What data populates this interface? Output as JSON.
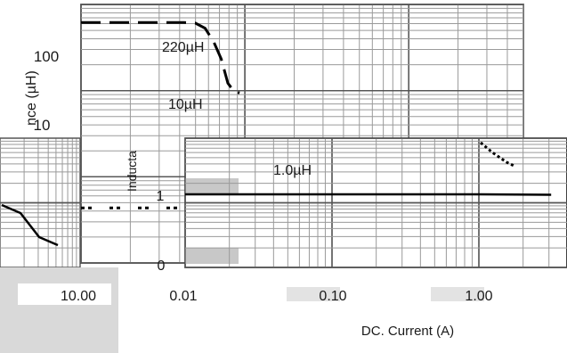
{
  "chart_data": [
    {
      "type": "line",
      "scale": "log-log",
      "ylabel": "nce (µH)",
      "ytick_labels": [
        "100",
        "10"
      ],
      "ylim": [
        10,
        300
      ],
      "series": [
        {
          "name": "220µH",
          "style": "dashed-to-solid",
          "x": [
            0.01,
            0.05,
            0.06,
            0.07,
            0.08,
            0.09,
            0.1,
            0.11,
            0.12
          ],
          "y": [
            220,
            220,
            218,
            200,
            160,
            120,
            80,
            70,
            68
          ]
        },
        {
          "name": "10µH",
          "style": "dotted-to-solid",
          "x": [
            0.01,
            0.1,
            0.5,
            0.6,
            0.7,
            0.8
          ],
          "y": [
            10,
            10,
            10,
            9.8,
            9.6,
            9.4
          ]
        }
      ]
    },
    {
      "type": "line",
      "scale": "log-log",
      "xlabel": "DC. Current (A)",
      "ylabel": "Inducta",
      "xtick_labels": [
        "0.01",
        "0.10",
        "1.00"
      ],
      "ytick_labels": [
        "1",
        "0"
      ],
      "xlim": [
        0.01,
        3
      ],
      "series": [
        {
          "name": "1.0µH",
          "x": [
            0.01,
            0.1,
            1.0,
            3.0
          ],
          "y": [
            1.0,
            1.0,
            1.0,
            0.98
          ]
        },
        {
          "style": "dotted",
          "x": [
            1.0,
            1.2,
            1.5,
            1.7
          ],
          "y": [
            5,
            4,
            3,
            2.6
          ]
        }
      ]
    },
    {
      "type": "line",
      "fragment": "left",
      "xtick_labels": [
        "10.00"
      ],
      "series": [
        {
          "x": [
            0,
            1,
            2,
            3
          ],
          "y": [
            1.0,
            0.9,
            0.6,
            0.5
          ]
        }
      ]
    }
  ]
}
